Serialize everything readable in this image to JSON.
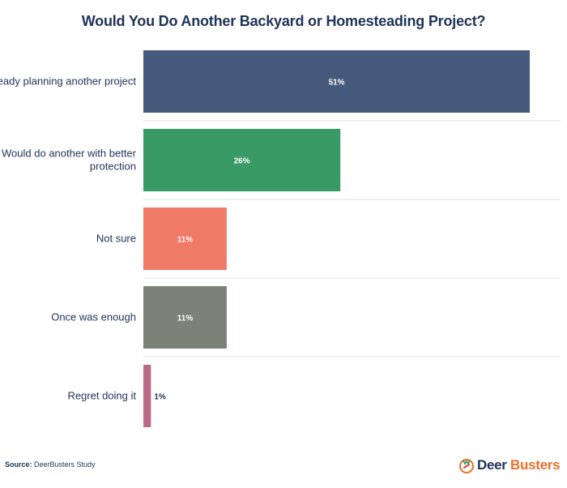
{
  "chart_data": {
    "type": "bar",
    "orientation": "horizontal",
    "title": "Would You Do Another Backyard or Homesteading Project?",
    "categories": [
      "Already planning another project",
      "Would do another with better protection",
      "Not sure",
      "Once was enough",
      "Regret doing it"
    ],
    "values": [
      51,
      26,
      11,
      11,
      1
    ],
    "value_labels": [
      "51%",
      "26%",
      "11%",
      "11%",
      "1%"
    ],
    "colors": [
      "#455a7d",
      "#3a9a66",
      "#f07a68",
      "#7b8278",
      "#b86a86"
    ],
    "xlim": [
      0,
      56
    ],
    "grid": "horizontal separators"
  },
  "footer": {
    "source_label": "Source:",
    "source_text": "DeerBusters Study"
  },
  "logo": {
    "name_part1": "Deer",
    "name_part2": " Busters",
    "icon": "deer-antler-icon"
  }
}
